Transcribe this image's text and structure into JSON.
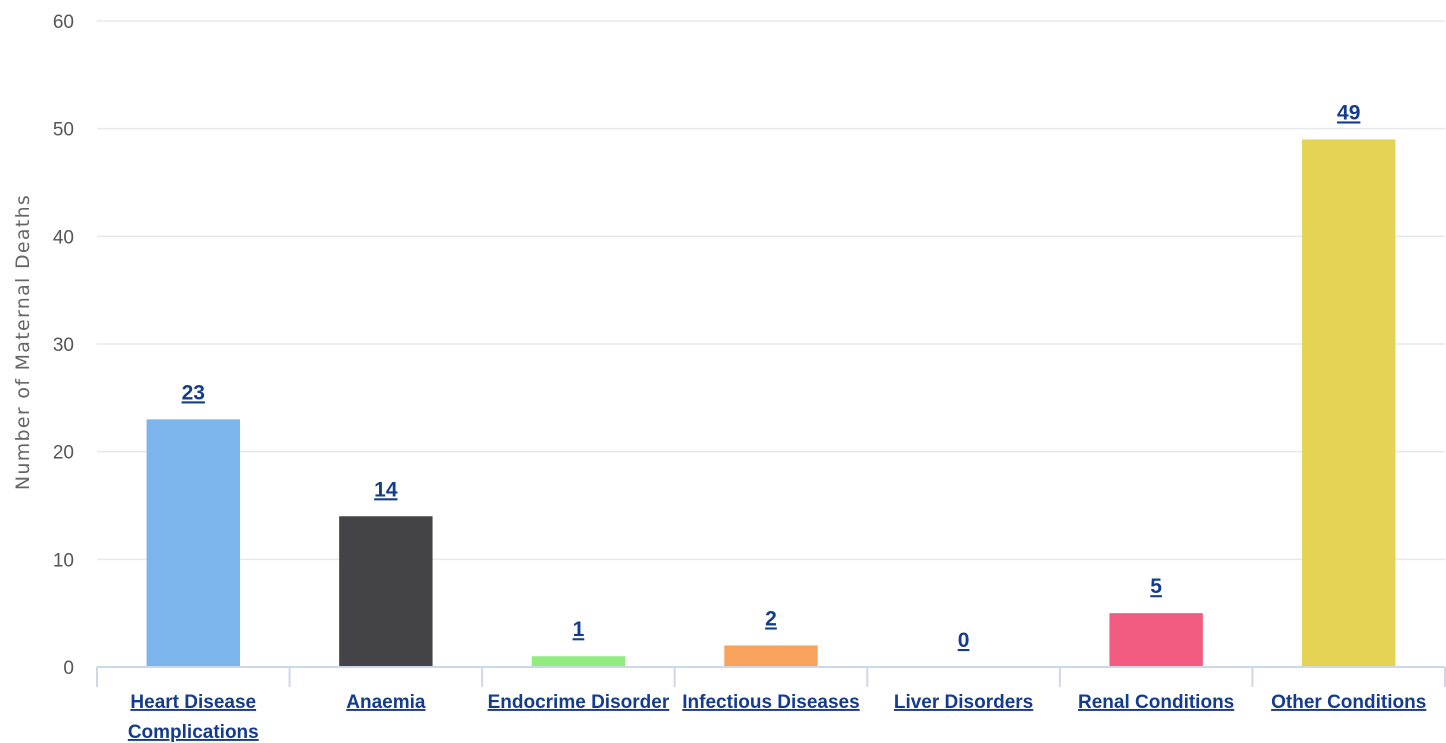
{
  "chart_data": {
    "type": "bar",
    "title": "",
    "xlabel": "",
    "ylabel": "Number of Maternal Deaths",
    "categories": [
      [
        "Heart Disease",
        "Complications"
      ],
      [
        "Anaemia"
      ],
      [
        "Endocrime Disorder"
      ],
      [
        "Infectious Diseases"
      ],
      [
        "Liver Disorders"
      ],
      [
        "Renal Conditions"
      ],
      [
        "Other Conditions"
      ]
    ],
    "values": [
      23,
      14,
      1,
      2,
      0,
      5,
      49
    ],
    "colors": [
      "#7cb5ec",
      "#434348",
      "#90ed7d",
      "#f7a35c",
      "#8085e9",
      "#f15c80",
      "#e4d354"
    ],
    "ylim": [
      0,
      60
    ],
    "yticks": [
      0,
      10,
      20,
      30,
      40,
      50,
      60
    ],
    "grid": true,
    "data_labels": true,
    "legend": false
  }
}
